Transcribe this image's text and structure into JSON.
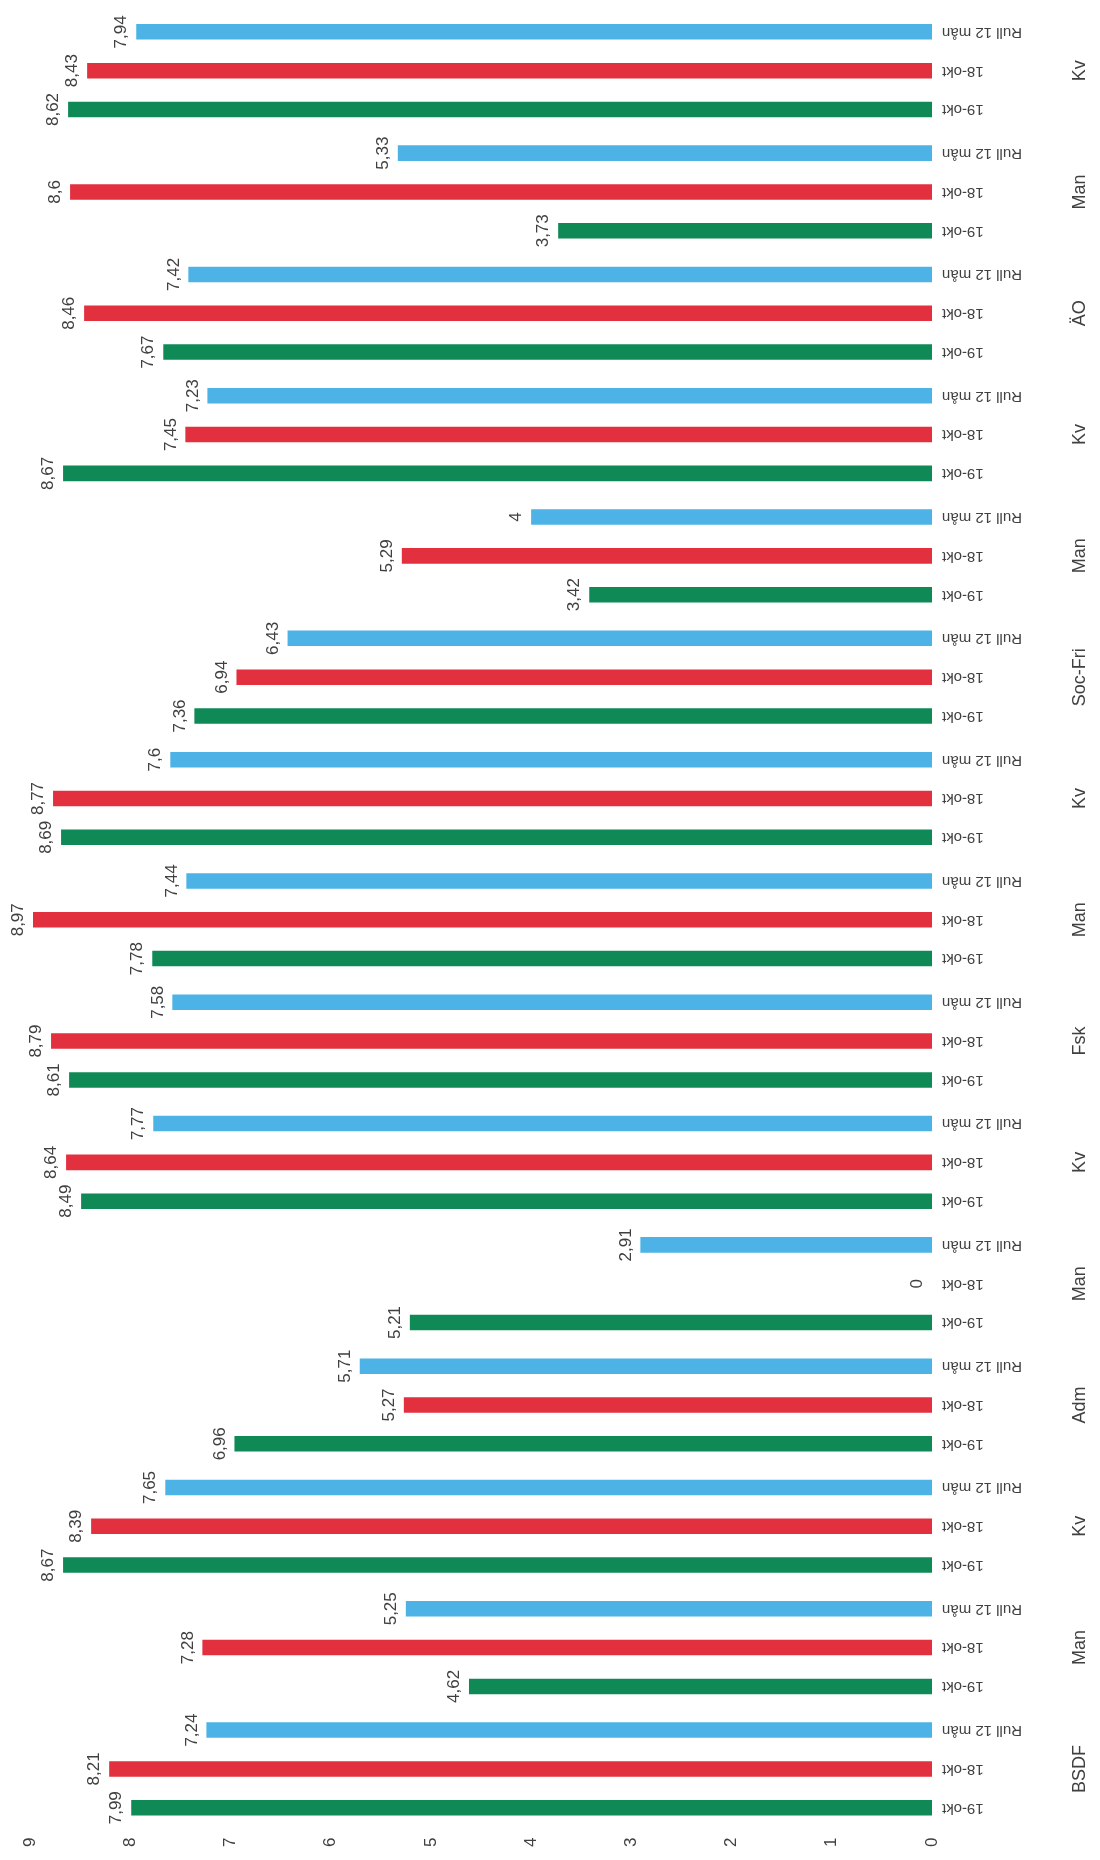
{
  "chart_data": {
    "type": "bar",
    "categories": [
      "Kv",
      "Man",
      "ÄO",
      "Kv",
      "Man",
      "Soc-Fri",
      "Kv",
      "Man",
      "Fsk",
      "Kv",
      "Man",
      "Adm",
      "Kv",
      "Man",
      "BSDF"
    ],
    "series": [
      {
        "name": "Rull 12 mån",
        "color": "#4db3e6",
        "values": [
          7.94,
          5.33,
          7.42,
          7.23,
          4,
          6.43,
          7.6,
          7.44,
          7.58,
          7.77,
          2.91,
          5.71,
          7.65,
          5.25,
          7.24
        ],
        "value_labels": [
          "7,94",
          "5,33",
          "7,42",
          "7,23",
          "4",
          "6,43",
          "7,6",
          "7,44",
          "7,58",
          "7,77",
          "2,91",
          "5,71",
          "7,65",
          "5,25",
          "7,24"
        ]
      },
      {
        "name": "18-okt",
        "color": "#e2303f",
        "values": [
          8.43,
          8.6,
          8.46,
          7.45,
          5.29,
          6.94,
          8.77,
          8.97,
          8.79,
          8.64,
          0,
          5.27,
          8.39,
          7.28,
          8.21
        ],
        "value_labels": [
          "8,43",
          "8,6",
          "8,46",
          "7,45",
          "5,29",
          "6,94",
          "8,77",
          "8,97",
          "8,79",
          "8,64",
          "0",
          "5,27",
          "8,39",
          "7,28",
          "8,21"
        ]
      },
      {
        "name": "19-okt",
        "color": "#0f8a57",
        "values": [
          8.62,
          3.73,
          7.67,
          8.67,
          3.42,
          7.36,
          8.69,
          7.78,
          8.61,
          8.49,
          5.21,
          6.96,
          8.67,
          4.62,
          7.99
        ],
        "value_labels": [
          "8,62",
          "3,73",
          "7,67",
          "8,67",
          "3,42",
          "7,36",
          "8,69",
          "7,78",
          "8,61",
          "8,49",
          "5,21",
          "6,96",
          "8,67",
          "4,62",
          "7,99"
        ]
      }
    ],
    "orientation": "horizontal",
    "xlim": [
      9,
      0
    ],
    "xticks": [
      0,
      1,
      2,
      3,
      4,
      5,
      6,
      7,
      8,
      9
    ],
    "grid": false,
    "legend": false
  }
}
